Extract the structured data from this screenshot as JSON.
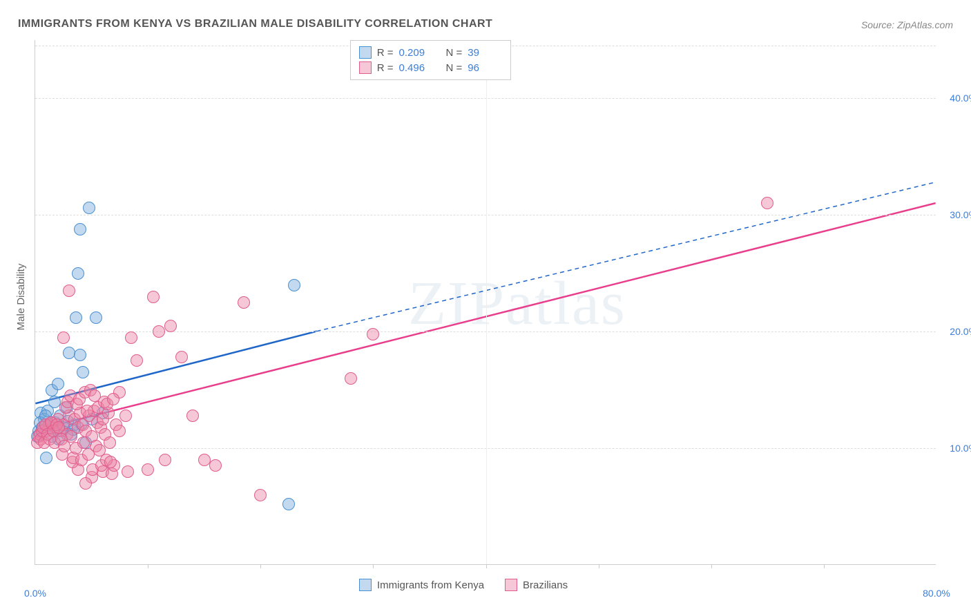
{
  "title": "IMMIGRANTS FROM KENYA VS BRAZILIAN MALE DISABILITY CORRELATION CHART",
  "source_label": "Source: ",
  "source_name": "ZipAtlas.com",
  "watermark": "ZIPatlas",
  "ylabel": "Male Disability",
  "chart": {
    "type": "scatter-with-regression",
    "background": "#ffffff",
    "grid_color": "#dddddd",
    "axis_color": "#cccccc",
    "tick_color": "#3b7dd8",
    "xlim": [
      0,
      80
    ],
    "ylim": [
      0,
      45
    ],
    "xticks": [
      0,
      80
    ],
    "xtick_labels": [
      "0.0%",
      "80.0%"
    ],
    "yticks": [
      10,
      20,
      30,
      40
    ],
    "ytick_labels": [
      "10.0%",
      "20.0%",
      "30.0%",
      "40.0%"
    ],
    "xtick_minor": [
      10,
      20,
      30,
      40,
      50,
      60,
      70
    ],
    "point_radius": 9,
    "point_opacity": 0.55,
    "series": [
      {
        "id": "kenya",
        "label": "Immigrants from Kenya",
        "color_fill": "rgba(120,170,220,0.45)",
        "color_stroke": "#4a8fd0",
        "R": "0.209",
        "N": "39",
        "trend": {
          "color": "#1f66c9",
          "width": 2.5,
          "x1": 0,
          "y1": 13.8,
          "x2": 25,
          "y2": 20.0,
          "dash_x2": 80,
          "dash_y2": 32.8
        },
        "points": [
          [
            4.8,
            30.6
          ],
          [
            4.0,
            28.8
          ],
          [
            3.8,
            25.0
          ],
          [
            3.6,
            21.2
          ],
          [
            5.4,
            21.2
          ],
          [
            23.0,
            24.0
          ],
          [
            1.5,
            15.0
          ],
          [
            2.0,
            15.5
          ],
          [
            0.5,
            13.0
          ],
          [
            0.8,
            12.5
          ],
          [
            1.2,
            12.0
          ],
          [
            1.8,
            12.2
          ],
          [
            2.5,
            11.8
          ],
          [
            3.5,
            12.0
          ],
          [
            4.5,
            10.5
          ],
          [
            1.0,
            9.2
          ],
          [
            3.0,
            18.2
          ],
          [
            4.0,
            18.0
          ],
          [
            5.0,
            12.5
          ],
          [
            6.0,
            13.0
          ],
          [
            0.3,
            11.5
          ],
          [
            0.6,
            11.8
          ],
          [
            1.5,
            11.0
          ],
          [
            2.2,
            12.8
          ],
          [
            3.2,
            11.2
          ],
          [
            4.2,
            16.5
          ],
          [
            2.8,
            13.5
          ],
          [
            22.5,
            5.2
          ],
          [
            0.4,
            12.2
          ],
          [
            1.1,
            13.2
          ],
          [
            1.7,
            14.0
          ],
          [
            2.4,
            11.5
          ],
          [
            0.2,
            11.0
          ],
          [
            0.9,
            12.8
          ],
          [
            1.4,
            11.7
          ],
          [
            2.1,
            10.8
          ],
          [
            2.9,
            12.3
          ],
          [
            3.4,
            11.6
          ],
          [
            4.1,
            12.1
          ]
        ]
      },
      {
        "id": "brazilians",
        "label": "Brazilians",
        "color_fill": "rgba(235,130,165,0.45)",
        "color_stroke": "#e05c8c",
        "R": "0.496",
        "N": "96",
        "trend": {
          "color": "#e83e8c",
          "width": 2.5,
          "x1": 0,
          "y1": 11.5,
          "x2": 80,
          "y2": 31.0,
          "solid_full": true
        },
        "points": [
          [
            65.0,
            31.0
          ],
          [
            30.0,
            19.8
          ],
          [
            28.0,
            16.0
          ],
          [
            18.5,
            22.5
          ],
          [
            20.0,
            6.0
          ],
          [
            12.0,
            20.5
          ],
          [
            10.5,
            23.0
          ],
          [
            11.0,
            20.0
          ],
          [
            13.0,
            17.8
          ],
          [
            14.0,
            12.8
          ],
          [
            15.0,
            9.0
          ],
          [
            16.0,
            8.5
          ],
          [
            8.5,
            19.5
          ],
          [
            9.0,
            17.5
          ],
          [
            7.5,
            14.8
          ],
          [
            6.0,
            8.0
          ],
          [
            5.0,
            7.5
          ],
          [
            4.5,
            7.0
          ],
          [
            3.8,
            8.2
          ],
          [
            2.5,
            19.5
          ],
          [
            3.0,
            23.5
          ],
          [
            1.0,
            11.5
          ],
          [
            1.2,
            12.0
          ],
          [
            1.5,
            12.2
          ],
          [
            1.8,
            11.8
          ],
          [
            2.0,
            12.5
          ],
          [
            2.2,
            11.5
          ],
          [
            2.5,
            12.0
          ],
          [
            2.8,
            11.2
          ],
          [
            3.0,
            12.8
          ],
          [
            3.2,
            11.0
          ],
          [
            3.5,
            12.5
          ],
          [
            3.8,
            11.8
          ],
          [
            4.0,
            13.0
          ],
          [
            4.2,
            12.0
          ],
          [
            4.5,
            11.5
          ],
          [
            4.8,
            12.8
          ],
          [
            5.0,
            11.0
          ],
          [
            5.2,
            13.2
          ],
          [
            5.5,
            12.2
          ],
          [
            5.8,
            11.8
          ],
          [
            6.0,
            12.5
          ],
          [
            6.2,
            11.2
          ],
          [
            6.5,
            13.0
          ],
          [
            6.8,
            7.8
          ],
          [
            7.0,
            8.5
          ],
          [
            7.2,
            12.0
          ],
          [
            7.5,
            11.5
          ],
          [
            8.0,
            12.8
          ],
          [
            8.2,
            8.0
          ],
          [
            0.2,
            10.5
          ],
          [
            0.3,
            11.0
          ],
          [
            0.4,
            11.2
          ],
          [
            0.5,
            10.8
          ],
          [
            0.6,
            11.5
          ],
          [
            0.7,
            11.8
          ],
          [
            0.8,
            10.5
          ],
          [
            0.9,
            12.0
          ],
          [
            1.1,
            11.2
          ],
          [
            1.3,
            10.8
          ],
          [
            1.4,
            12.2
          ],
          [
            1.6,
            11.5
          ],
          [
            1.7,
            10.5
          ],
          [
            1.9,
            12.0
          ],
          [
            2.1,
            11.8
          ],
          [
            2.3,
            10.8
          ],
          [
            2.4,
            9.5
          ],
          [
            2.6,
            10.2
          ],
          [
            2.7,
            13.5
          ],
          [
            2.9,
            14.0
          ],
          [
            3.1,
            14.5
          ],
          [
            3.3,
            8.8
          ],
          [
            3.4,
            9.2
          ],
          [
            3.6,
            10.0
          ],
          [
            3.7,
            13.8
          ],
          [
            3.9,
            14.2
          ],
          [
            4.1,
            9.0
          ],
          [
            4.3,
            10.5
          ],
          [
            4.4,
            14.8
          ],
          [
            4.6,
            13.2
          ],
          [
            4.7,
            9.5
          ],
          [
            4.9,
            15.0
          ],
          [
            5.1,
            8.2
          ],
          [
            5.3,
            14.5
          ],
          [
            5.4,
            10.2
          ],
          [
            5.6,
            13.5
          ],
          [
            5.7,
            9.8
          ],
          [
            5.9,
            8.5
          ],
          [
            6.1,
            14.0
          ],
          [
            6.3,
            9.0
          ],
          [
            6.4,
            13.8
          ],
          [
            6.6,
            10.5
          ],
          [
            6.7,
            8.8
          ],
          [
            6.9,
            14.2
          ],
          [
            10.0,
            8.2
          ],
          [
            11.5,
            9.0
          ]
        ]
      }
    ]
  },
  "top_legend": {
    "R_label": "R =",
    "N_label": "N ="
  }
}
